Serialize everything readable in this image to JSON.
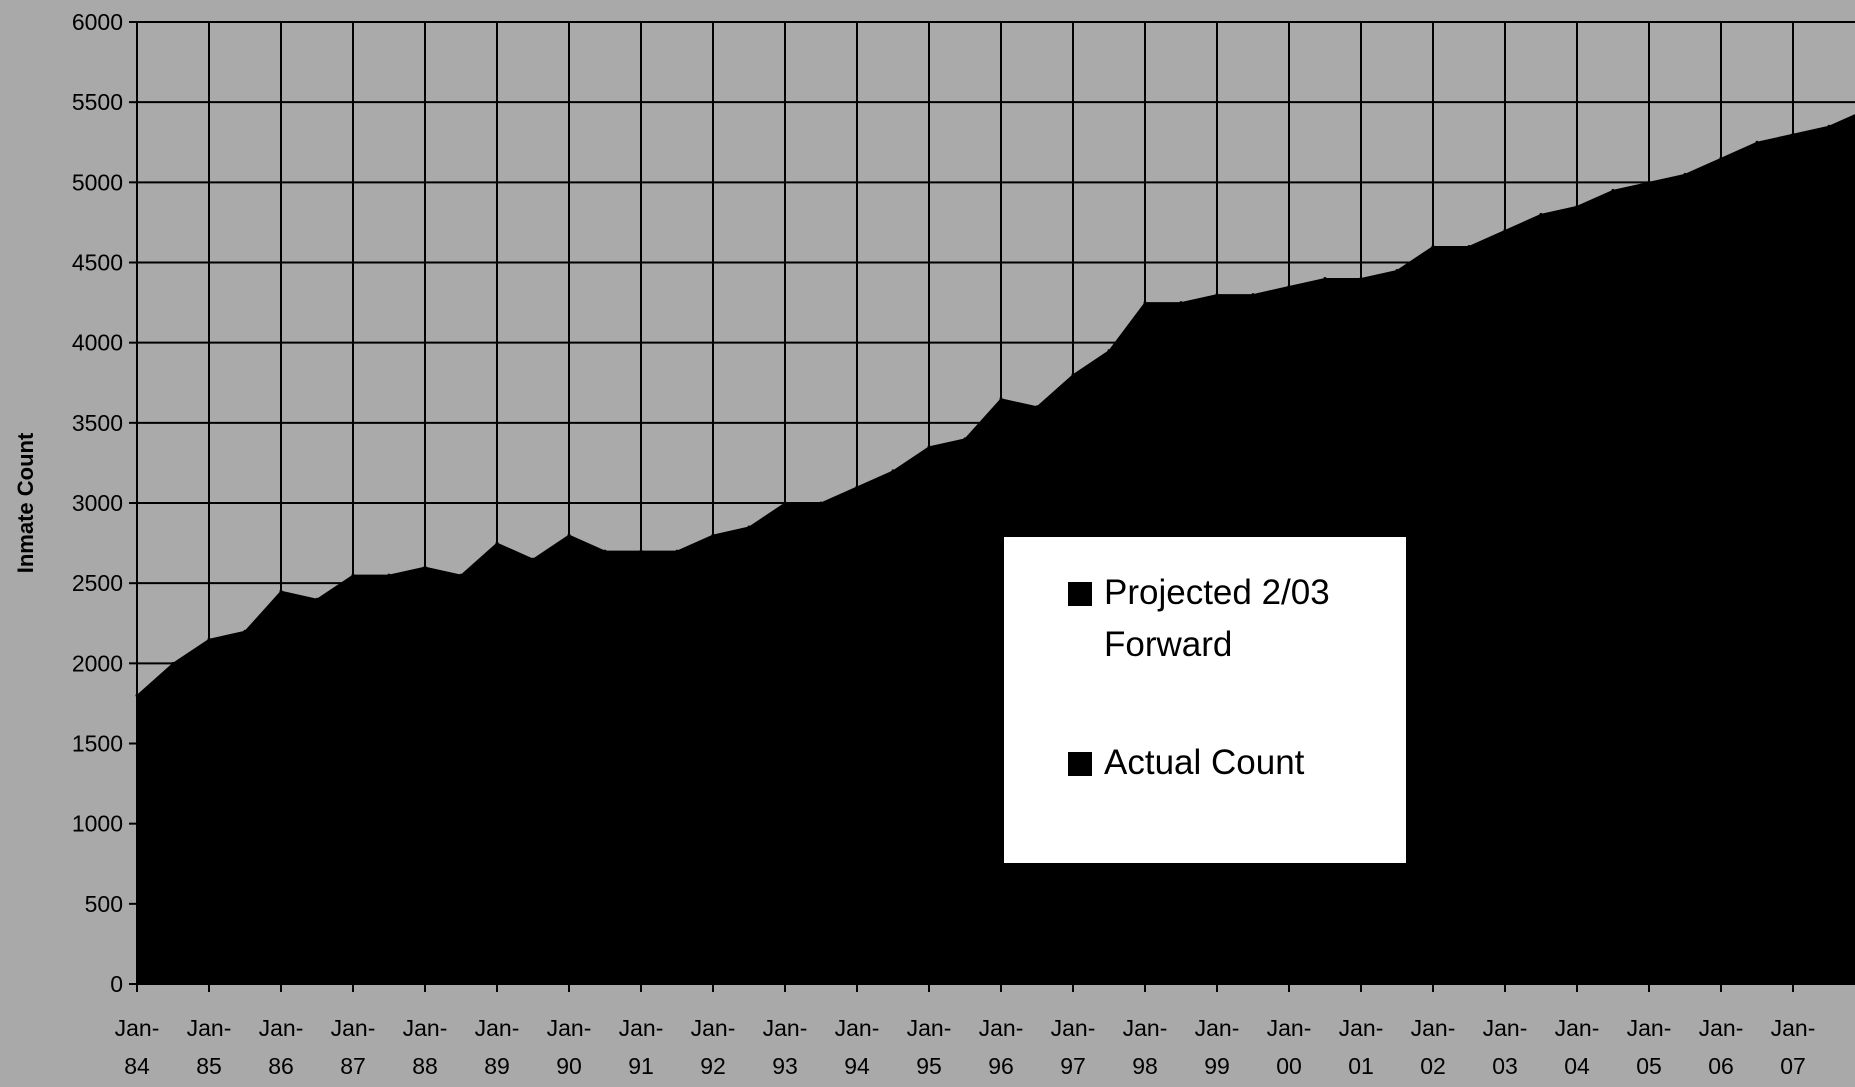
{
  "chart_data": {
    "type": "area",
    "title": "",
    "xlabel": "",
    "ylabel": "Inmate Count",
    "ylim": [
      0,
      6000
    ],
    "yticks": [
      0,
      500,
      1000,
      1500,
      2000,
      2500,
      3000,
      3500,
      4000,
      4500,
      5000,
      5500,
      6000
    ],
    "xlim": [
      "Jan-84",
      "Jan-08"
    ],
    "grid": true,
    "legend_position": "center-right",
    "categories": [
      {
        "label": "Jan-\n84",
        "top": "Jan-",
        "bottom": "84"
      },
      {
        "label": "Jan-\n85",
        "top": "Jan-",
        "bottom": "85"
      },
      {
        "label": "Jan-\n86",
        "top": "Jan-",
        "bottom": "86"
      },
      {
        "label": "Jan-\n87",
        "top": "Jan-",
        "bottom": "87"
      },
      {
        "label": "Jan-\n88",
        "top": "Jan-",
        "bottom": "88"
      },
      {
        "label": "Jan-\n89",
        "top": "Jan-",
        "bottom": "89"
      },
      {
        "label": "Jan-\n90",
        "top": "Jan-",
        "bottom": "90"
      },
      {
        "label": "Jan-\n91",
        "top": "Jan-",
        "bottom": "91"
      },
      {
        "label": "Jan-\n92",
        "top": "Jan-",
        "bottom": "92"
      },
      {
        "label": "Jan-\n93",
        "top": "Jan-",
        "bottom": "93"
      },
      {
        "label": "Jan-\n94",
        "top": "Jan-",
        "bottom": "94"
      },
      {
        "label": "Jan-\n95",
        "top": "Jan-",
        "bottom": "95"
      },
      {
        "label": "Jan-\n96",
        "top": "Jan-",
        "bottom": "96"
      },
      {
        "label": "Jan-\n97",
        "top": "Jan-",
        "bottom": "97"
      },
      {
        "label": "Jan-\n98",
        "top": "Jan-",
        "bottom": "98"
      },
      {
        "label": "Jan-\n99",
        "top": "Jan-",
        "bottom": "99"
      },
      {
        "label": "Jan-\n00",
        "top": "Jan-",
        "bottom": "00"
      },
      {
        "label": "Jan-\n01",
        "top": "Jan-",
        "bottom": "01"
      },
      {
        "label": "Jan-\n02",
        "top": "Jan-",
        "bottom": "02"
      },
      {
        "label": "Jan-\n03",
        "top": "Jan-",
        "bottom": "03"
      },
      {
        "label": "Jan-\n04",
        "top": "Jan-",
        "bottom": "04"
      },
      {
        "label": "Jan-\n05",
        "top": "Jan-",
        "bottom": "05"
      },
      {
        "label": "Jan-\n06",
        "top": "Jan-",
        "bottom": "06"
      },
      {
        "label": "Jan-\n07",
        "top": "Jan-",
        "bottom": "07"
      }
    ],
    "legend": [
      {
        "label_lines": [
          "Projected 2/03",
          "Forward"
        ],
        "color": "#000000"
      },
      {
        "label_lines": [
          "Actual Count"
        ],
        "color": "#000000"
      }
    ],
    "series": [
      {
        "name": "Actual Count",
        "color": "#000000",
        "x": [
          "Jan-84",
          "Jul-84",
          "Jan-85",
          "Jul-85",
          "Jan-86",
          "Jul-86",
          "Jan-87",
          "Jul-87",
          "Jan-88",
          "Jul-88",
          "Jan-89",
          "Jul-89",
          "Jan-90",
          "Jul-90",
          "Jan-91",
          "Jul-91",
          "Jan-92",
          "Jul-92",
          "Jan-93",
          "Jul-93",
          "Jan-94",
          "Jul-94",
          "Jan-95",
          "Jul-95",
          "Jan-96",
          "Jul-96",
          "Jan-97",
          "Jul-97",
          "Jan-98",
          "Jul-98",
          "Jan-99",
          "Jul-99",
          "Jan-00",
          "Jul-00",
          "Jan-01",
          "Jul-01",
          "Jan-02",
          "Jul-02",
          "Jan-03"
        ],
        "y": [
          1800,
          2000,
          2150,
          2200,
          2450,
          2400,
          2550,
          2550,
          2600,
          2550,
          2750,
          2650,
          2800,
          2700,
          2700,
          2700,
          2800,
          2850,
          3000,
          3000,
          3100,
          3200,
          3350,
          3400,
          3650,
          3600,
          3800,
          3950,
          4250,
          4250,
          4300,
          4300,
          4350,
          4400,
          4400,
          4450,
          4600,
          4600,
          4700
        ]
      },
      {
        "name": "Projected 2/03 Forward",
        "color": "#000000",
        "x": [
          "Jan-03",
          "Jul-03",
          "Jan-04",
          "Jul-04",
          "Jan-05",
          "Jul-05",
          "Jan-06",
          "Jul-06",
          "Jan-07",
          "Jul-07",
          "Jan-08"
        ],
        "y": [
          4700,
          4800,
          4850,
          4950,
          5000,
          5050,
          5150,
          5250,
          5300,
          5350,
          5450
        ]
      }
    ]
  }
}
